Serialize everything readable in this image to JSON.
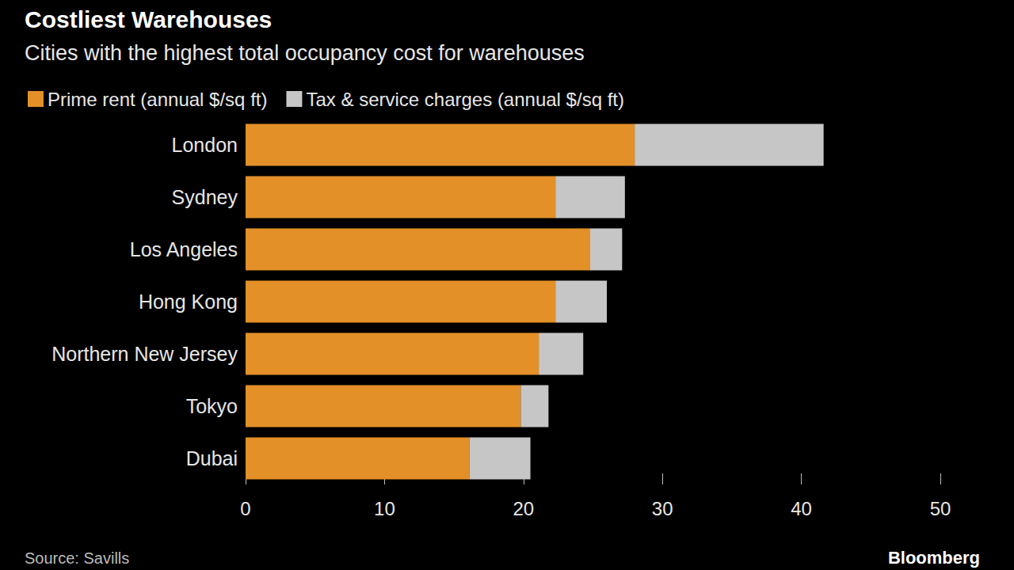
{
  "chart_data": {
    "type": "bar",
    "orientation": "horizontal",
    "stacked": true,
    "title": "Costliest Warehouses",
    "subtitle": "Cities with the highest total occupancy cost for warehouses",
    "source": "Source: Savills",
    "credit": "Bloomberg",
    "categories": [
      "London",
      "Sydney",
      "Los Angeles",
      "Hong Kong",
      "Northern New Jersey",
      "Tokyo",
      "Dubai"
    ],
    "series": [
      {
        "name": "Prime rent (annual $/sq ft)",
        "color": "#e39028",
        "values": [
          28.0,
          22.3,
          24.8,
          22.3,
          21.1,
          19.8,
          16.1
        ]
      },
      {
        "name": "Tax & service charges (annual $/sq ft)",
        "color": "#c6c6c6",
        "values": [
          13.6,
          5.0,
          2.3,
          3.7,
          3.2,
          2.0,
          4.4
        ]
      }
    ],
    "xlim": [
      0,
      50
    ],
    "xticks": [
      0,
      10,
      20,
      30,
      40,
      50
    ],
    "grid": false,
    "legend": "top-left",
    "data_labels": false
  }
}
